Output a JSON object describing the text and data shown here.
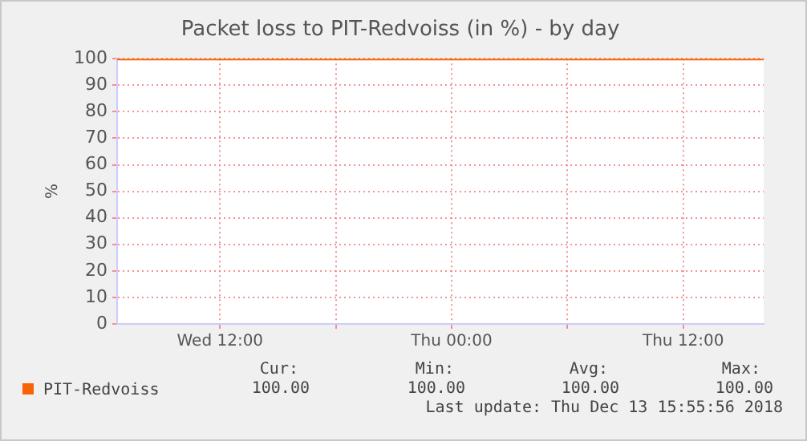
{
  "chart_data": {
    "type": "line",
    "title": "Packet loss to PIT-Redvoiss (in %) - by day",
    "ylabel": "%",
    "x": [
      "2018-12-12T06:40",
      "2018-12-13T16:10"
    ],
    "xlim": [
      "2018-12-12T06:40",
      "2018-12-13T16:10"
    ],
    "xticks": [
      {
        "value": "2018-12-12T12:00",
        "label": "Wed 12:00"
      },
      {
        "value": "2018-12-12T18:00",
        "label": null
      },
      {
        "value": "2018-12-13T00:00",
        "label": "Thu 00:00"
      },
      {
        "value": "2018-12-13T06:00",
        "label": null
      },
      {
        "value": "2018-12-13T12:00",
        "label": "Thu 12:00"
      }
    ],
    "ylim": [
      0,
      100
    ],
    "yticks": [
      0,
      10,
      20,
      30,
      40,
      50,
      60,
      70,
      80,
      90,
      100
    ],
    "series": [
      {
        "name": "PIT-Redvoiss",
        "color": "#f76306",
        "values": [
          100,
          100
        ]
      }
    ],
    "grid": true,
    "legend": "bottom left",
    "annotations": [
      "Cur:",
      "Min:",
      "Avg:",
      "Max:",
      "100.00",
      "100.00",
      "100.00",
      "100.00",
      "Last update: Thu Dec 13 15:55:56 2018"
    ]
  }
}
